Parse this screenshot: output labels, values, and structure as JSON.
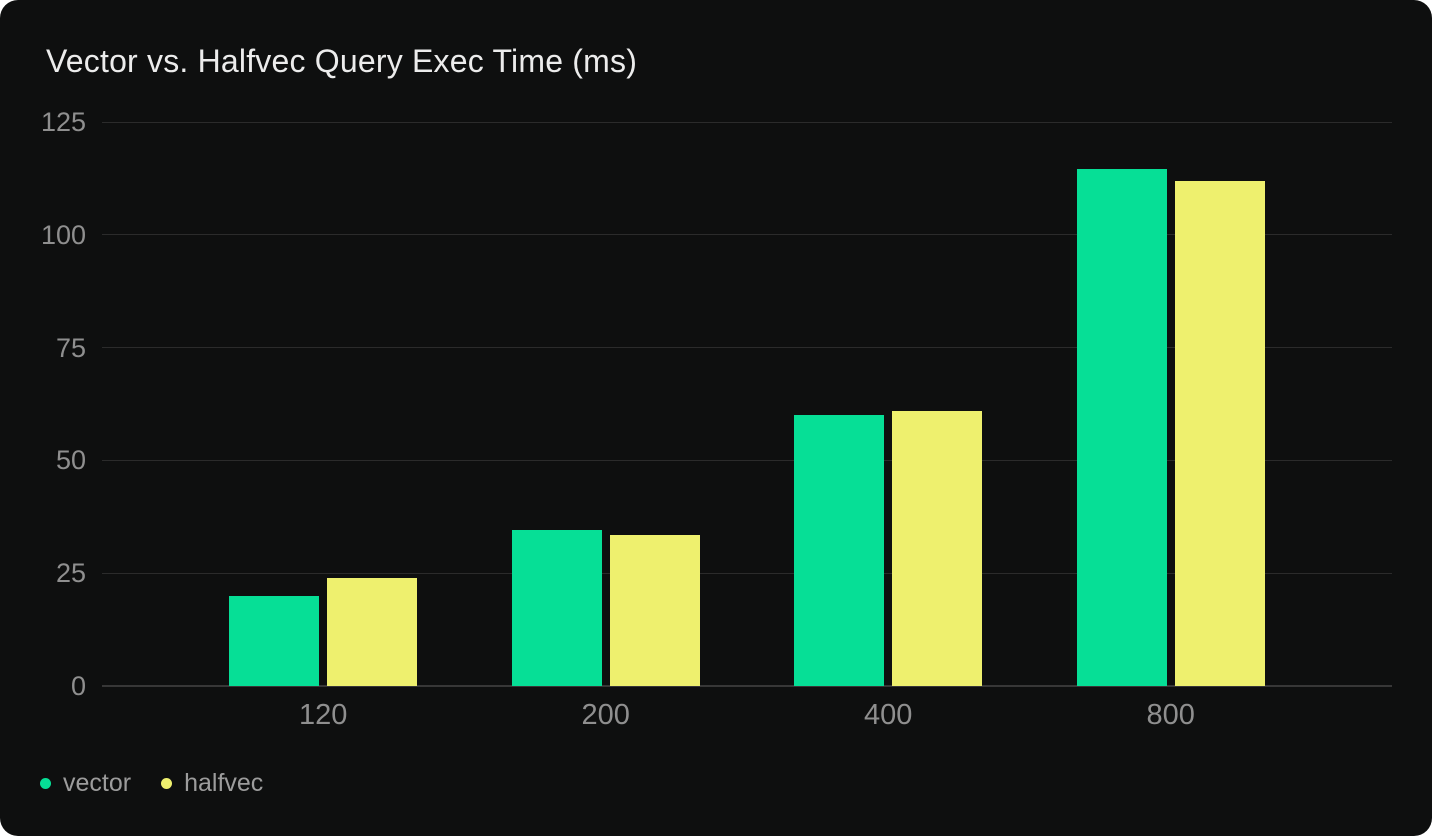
{
  "card": {
    "title": "Vector vs. Halfvec Query Exec Time (ms)"
  },
  "colors": {
    "page_background": "#ffffff",
    "card_background": "#0e0f0f",
    "gridline": "#2b2b2b",
    "axis_line": "#373737",
    "tick_label": "#8f8f8f",
    "title_text": "#ececec",
    "legend_text": "#9c9c9c",
    "vector": "#06df96",
    "halfvec": "#eef06e"
  },
  "chart_data": {
    "type": "bar",
    "title": "Vector vs. Halfvec Query Exec Time (ms)",
    "categories": [
      "120",
      "200",
      "400",
      "800"
    ],
    "series": [
      {
        "name": "vector",
        "color": "#06df96",
        "values": [
          20,
          34.5,
          60,
          114.5
        ]
      },
      {
        "name": "halfvec",
        "color": "#eef06e",
        "values": [
          24,
          33.5,
          61,
          112
        ]
      }
    ],
    "xlabel": "",
    "ylabel": "",
    "ylim": [
      0,
      125
    ],
    "yticks": [
      0,
      25,
      50,
      75,
      100,
      125
    ],
    "grid": true,
    "legend_position": "bottom-left"
  }
}
